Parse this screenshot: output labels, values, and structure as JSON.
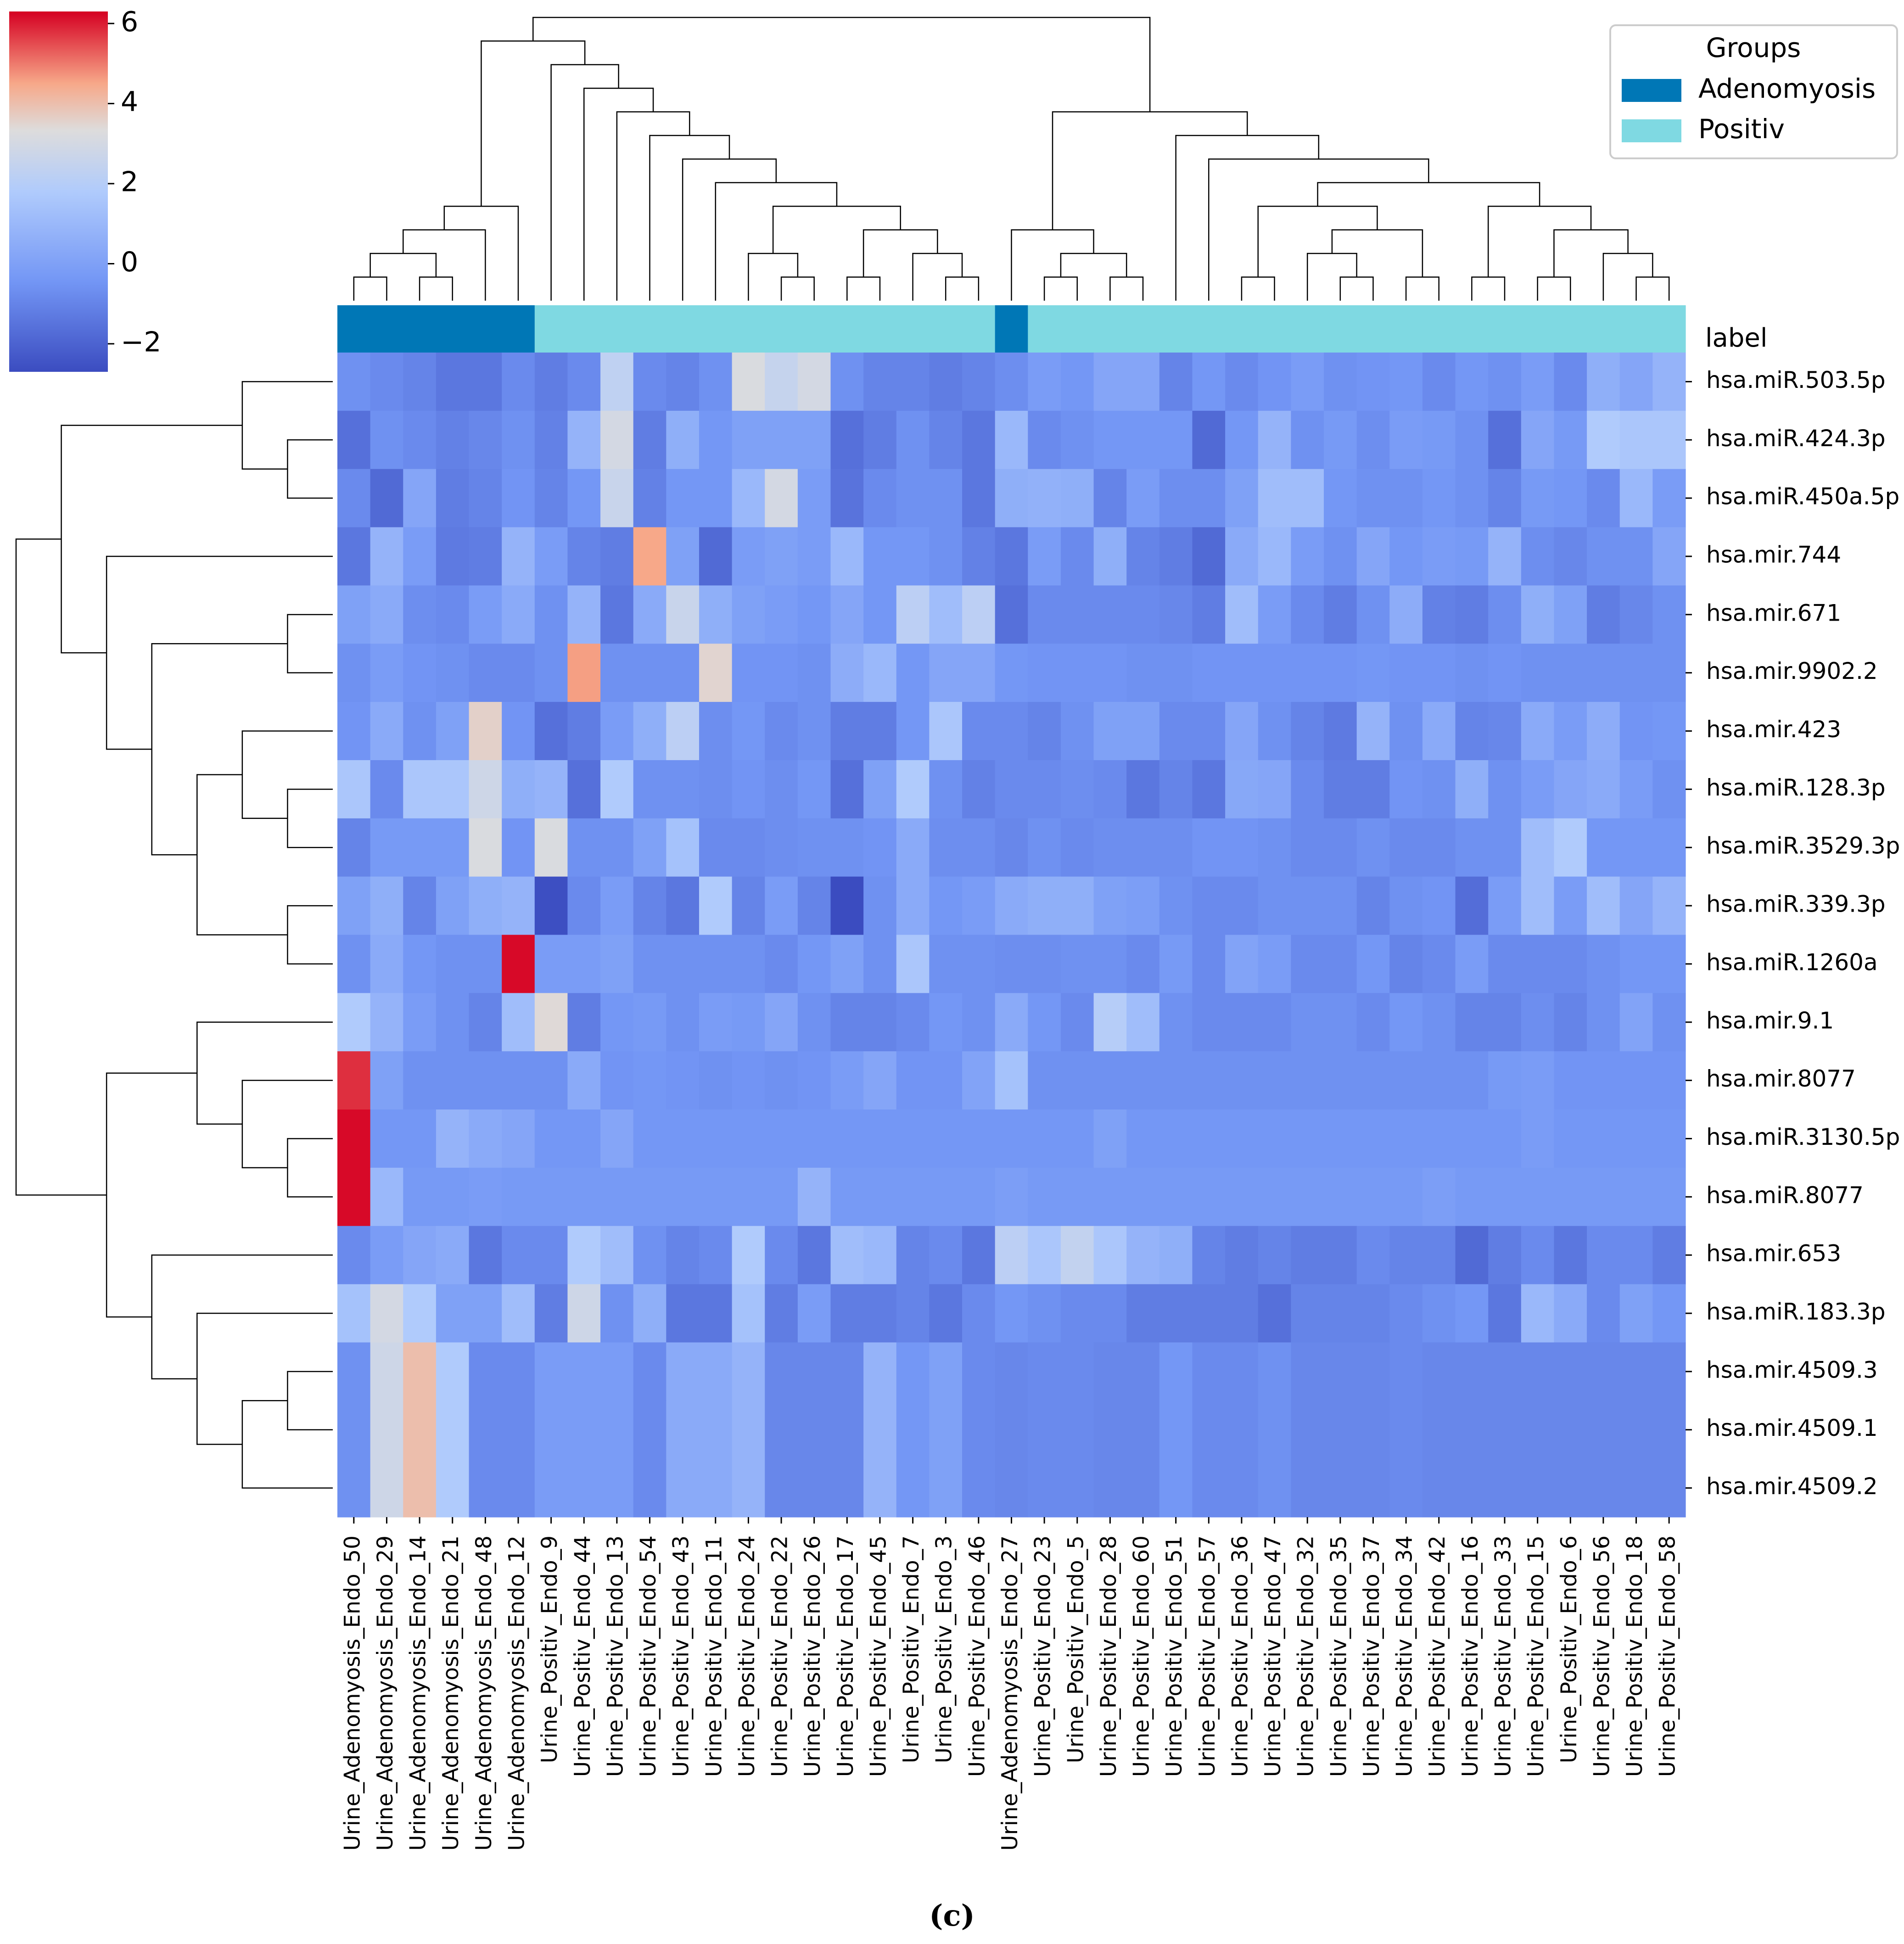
{
  "chart_data": {
    "type": "heatmap",
    "title": "",
    "caption": "(c)",
    "colormap": "coolwarm",
    "colorbar": {
      "vmin": -2.7,
      "vmax": 6.3,
      "ticks": [
        -2,
        0,
        2,
        4,
        6
      ],
      "tick_labels": [
        "−2",
        "0",
        "2",
        "4",
        "6"
      ]
    },
    "annotation_row_label": "label",
    "legend": {
      "title": "Groups",
      "placement": "top-right",
      "items": [
        {
          "label": "Adenomyosis",
          "color": "#0077b6"
        },
        {
          "label": "Positiv",
          "color": "#7fd9e2"
        }
      ]
    },
    "columns": [
      {
        "label": "Urine_Adenomyosis_Endo_50",
        "group": "Adenomyosis"
      },
      {
        "label": "Urine_Adenomyosis_Endo_29",
        "group": "Adenomyosis"
      },
      {
        "label": "Urine_Adenomyosis_Endo_14",
        "group": "Adenomyosis"
      },
      {
        "label": "Urine_Adenomyosis_Endo_21",
        "group": "Adenomyosis"
      },
      {
        "label": "Urine_Adenomyosis_Endo_48",
        "group": "Adenomyosis"
      },
      {
        "label": "Urine_Adenomyosis_Endo_12",
        "group": "Adenomyosis"
      },
      {
        "label": "Urine_Positiv_Endo_9",
        "group": "Positiv"
      },
      {
        "label": "Urine_Positiv_Endo_44",
        "group": "Positiv"
      },
      {
        "label": "Urine_Positiv_Endo_13",
        "group": "Positiv"
      },
      {
        "label": "Urine_Positiv_Endo_54",
        "group": "Positiv"
      },
      {
        "label": "Urine_Positiv_Endo_43",
        "group": "Positiv"
      },
      {
        "label": "Urine_Positiv_Endo_11",
        "group": "Positiv"
      },
      {
        "label": "Urine_Positiv_Endo_24",
        "group": "Positiv"
      },
      {
        "label": "Urine_Positiv_Endo_22",
        "group": "Positiv"
      },
      {
        "label": "Urine_Positiv_Endo_26",
        "group": "Positiv"
      },
      {
        "label": "Urine_Positiv_Endo_17",
        "group": "Positiv"
      },
      {
        "label": "Urine_Positiv_Endo_45",
        "group": "Positiv"
      },
      {
        "label": "Urine_Positiv_Endo_7",
        "group": "Positiv"
      },
      {
        "label": "Urine_Positiv_Endo_3",
        "group": "Positiv"
      },
      {
        "label": "Urine_Positiv_Endo_46",
        "group": "Positiv"
      },
      {
        "label": "Urine_Adenomyosis_Endo_27",
        "group": "Adenomyosis"
      },
      {
        "label": "Urine_Positiv_Endo_23",
        "group": "Positiv"
      },
      {
        "label": "Urine_Positiv_Endo_5",
        "group": "Positiv"
      },
      {
        "label": "Urine_Positiv_Endo_28",
        "group": "Positiv"
      },
      {
        "label": "Urine_Positiv_Endo_60",
        "group": "Positiv"
      },
      {
        "label": "Urine_Positiv_Endo_51",
        "group": "Positiv"
      },
      {
        "label": "Urine_Positiv_Endo_57",
        "group": "Positiv"
      },
      {
        "label": "Urine_Positiv_Endo_36",
        "group": "Positiv"
      },
      {
        "label": "Urine_Positiv_Endo_47",
        "group": "Positiv"
      },
      {
        "label": "Urine_Positiv_Endo_32",
        "group": "Positiv"
      },
      {
        "label": "Urine_Positiv_Endo_35",
        "group": "Positiv"
      },
      {
        "label": "Urine_Positiv_Endo_37",
        "group": "Positiv"
      },
      {
        "label": "Urine_Positiv_Endo_34",
        "group": "Positiv"
      },
      {
        "label": "Urine_Positiv_Endo_42",
        "group": "Positiv"
      },
      {
        "label": "Urine_Positiv_Endo_16",
        "group": "Positiv"
      },
      {
        "label": "Urine_Positiv_Endo_33",
        "group": "Positiv"
      },
      {
        "label": "Urine_Positiv_Endo_15",
        "group": "Positiv"
      },
      {
        "label": "Urine_Positiv_Endo_6",
        "group": "Positiv"
      },
      {
        "label": "Urine_Positiv_Endo_56",
        "group": "Positiv"
      },
      {
        "label": "Urine_Positiv_Endo_18",
        "group": "Positiv"
      },
      {
        "label": "Urine_Positiv_Endo_58",
        "group": "Positiv"
      }
    ],
    "rows": [
      "hsa.miR.503.5p",
      "hsa.miR.424.3p",
      "hsa.miR.450a.5p",
      "hsa.mir.744",
      "hsa.mir.671",
      "hsa.mir.9902.2",
      "hsa.mir.423",
      "hsa.miR.128.3p",
      "hsa.miR.3529.3p",
      "hsa.miR.339.3p",
      "hsa.miR.1260a",
      "hsa.mir.9.1",
      "hsa.mir.8077",
      "hsa.miR.3130.5p",
      "hsa.miR.8077",
      "hsa.mir.653",
      "hsa.miR.183.3p",
      "hsa.mir.4509.3",
      "hsa.mir.4509.1",
      "hsa.mir.4509.2"
    ],
    "values": [
      [
        -0.6,
        -0.8,
        -1.0,
        -1.4,
        -1.4,
        -0.8,
        -1.2,
        -0.8,
        2.3,
        -0.8,
        -1.0,
        -0.6,
        3.2,
        2.5,
        3.0,
        -0.6,
        -1.0,
        -1.0,
        -1.2,
        -1.0,
        -0.7,
        -0.2,
        -0.4,
        0.2,
        0.2,
        -1.0,
        -0.4,
        -0.8,
        -0.5,
        -0.2,
        -0.6,
        -0.5,
        -0.4,
        -0.8,
        -0.4,
        -0.6,
        -0.2,
        -0.8,
        0.6,
        0.2,
        0.8
      ],
      [
        -1.6,
        -0.6,
        -0.8,
        -1.1,
        -0.9,
        -0.6,
        -1.1,
        0.8,
        3.0,
        -1.2,
        0.6,
        -0.4,
        0.0,
        0.0,
        0.0,
        -1.6,
        -1.2,
        -0.6,
        -1.0,
        -1.4,
        1.0,
        -0.8,
        -0.6,
        -0.4,
        -0.4,
        -0.4,
        -1.8,
        -0.4,
        0.8,
        -0.6,
        -0.3,
        -0.7,
        -0.2,
        -0.3,
        -0.6,
        -1.6,
        0.2,
        -0.3,
        1.8,
        1.6,
        1.6
      ],
      [
        -0.8,
        -1.8,
        0.2,
        -1.2,
        -1.0,
        -0.5,
        -1.0,
        -0.4,
        2.6,
        -1.1,
        -0.4,
        -0.4,
        1.0,
        3.0,
        -0.2,
        -1.5,
        -0.8,
        -0.6,
        -0.6,
        -1.4,
        0.6,
        0.7,
        0.6,
        -1.0,
        -0.2,
        -0.7,
        -0.7,
        0.0,
        1.2,
        1.2,
        -0.4,
        -0.6,
        -0.6,
        -0.4,
        -0.6,
        -1.0,
        -0.3,
        -0.4,
        -0.8,
        1.0,
        -0.2
      ],
      [
        -1.4,
        0.8,
        -0.2,
        -1.3,
        -1.2,
        0.8,
        -0.2,
        -1.0,
        -1.2,
        4.5,
        0.0,
        -1.8,
        -0.2,
        0.0,
        -0.2,
        1.0,
        -0.4,
        -0.4,
        -0.6,
        -1.1,
        -1.4,
        -0.2,
        -0.8,
        0.6,
        -1.0,
        -1.2,
        -1.8,
        0.4,
        1.0,
        -0.2,
        -0.6,
        0.2,
        -0.4,
        -0.2,
        -0.3,
        0.8,
        -0.7,
        -0.9,
        -0.6,
        -0.6,
        0.2
      ],
      [
        0.0,
        0.4,
        -0.7,
        -0.8,
        -0.2,
        0.4,
        -0.6,
        0.8,
        -1.4,
        0.4,
        2.6,
        0.6,
        0.0,
        -0.2,
        -0.4,
        0.2,
        -0.4,
        2.2,
        1.2,
        2.2,
        -1.6,
        -0.8,
        -0.8,
        -0.8,
        -0.8,
        -0.9,
        -1.2,
        1.2,
        -0.2,
        -0.8,
        -1.2,
        -0.6,
        0.5,
        -1.1,
        -1.2,
        -0.7,
        0.6,
        0.0,
        -1.2,
        -0.9,
        -0.6
      ],
      [
        -0.6,
        -0.2,
        -0.5,
        -0.6,
        -0.8,
        -0.8,
        -0.6,
        4.6,
        -0.6,
        -0.6,
        -0.6,
        3.5,
        -0.5,
        -0.5,
        -0.6,
        0.5,
        1.0,
        -0.4,
        0.2,
        0.2,
        -0.4,
        -0.5,
        -0.5,
        -0.5,
        -0.6,
        -0.6,
        -0.5,
        -0.5,
        -0.5,
        -0.5,
        -0.5,
        -0.4,
        -0.5,
        -0.5,
        -0.6,
        -0.5,
        -0.6,
        -0.6,
        -0.6,
        -0.6,
        -0.6
      ],
      [
        -0.5,
        0.4,
        -0.6,
        0.0,
        3.6,
        -0.5,
        -1.6,
        -1.2,
        -0.2,
        0.6,
        2.2,
        -0.7,
        -0.4,
        -0.8,
        -0.6,
        -1.2,
        -1.2,
        -0.4,
        1.6,
        -0.8,
        -0.8,
        -1.0,
        -0.6,
        0.0,
        0.0,
        -0.8,
        -0.8,
        0.2,
        -0.6,
        -1.0,
        -1.3,
        0.8,
        -0.6,
        0.4,
        -1.0,
        -0.9,
        0.4,
        -0.2,
        0.5,
        -0.5,
        -0.4
      ],
      [
        1.6,
        -0.8,
        1.6,
        1.6,
        2.8,
        0.6,
        0.8,
        -1.6,
        1.8,
        -0.6,
        -0.6,
        -0.7,
        -0.5,
        -0.7,
        -0.4,
        -1.6,
        0.0,
        1.8,
        -0.6,
        -1.1,
        -0.8,
        -0.8,
        -0.7,
        -0.8,
        -1.4,
        -1.0,
        -1.4,
        0.3,
        0.2,
        -0.8,
        -1.2,
        -1.2,
        -0.5,
        -0.6,
        0.6,
        -0.6,
        -0.2,
        0.2,
        0.4,
        -0.2,
        -0.6
      ],
      [
        -1.0,
        -0.3,
        -0.3,
        -0.3,
        3.2,
        -0.5,
        3.2,
        -0.6,
        -0.6,
        0.0,
        1.4,
        -0.8,
        -0.8,
        -0.7,
        -0.6,
        -0.6,
        -0.5,
        0.4,
        -0.7,
        -0.7,
        -0.9,
        -0.6,
        -0.8,
        -0.7,
        -0.7,
        -0.7,
        -0.5,
        -0.5,
        -0.6,
        -0.8,
        -0.8,
        -0.6,
        -0.8,
        -0.8,
        -0.6,
        -0.6,
        1.2,
        1.8,
        -0.4,
        -0.4,
        -0.4
      ],
      [
        0.0,
        0.6,
        -1.0,
        0.0,
        0.6,
        0.8,
        -2.6,
        -0.8,
        -0.2,
        -1.0,
        -1.4,
        1.8,
        -1.0,
        -0.2,
        -1.0,
        -2.8,
        -0.6,
        0.4,
        -0.4,
        -0.2,
        0.4,
        0.6,
        0.6,
        0.0,
        -0.1,
        -0.6,
        -0.8,
        -0.8,
        -0.6,
        -0.6,
        -0.6,
        -1.0,
        -0.6,
        -0.5,
        -1.7,
        -0.2,
        1.2,
        -0.2,
        1.2,
        0.2,
        0.8
      ],
      [
        -0.6,
        0.4,
        -0.4,
        -0.6,
        -0.6,
        6.2,
        -0.2,
        -0.2,
        0.0,
        -0.6,
        -0.6,
        -0.6,
        -0.6,
        -0.8,
        -0.4,
        0.0,
        -0.6,
        1.6,
        -0.6,
        -0.6,
        -0.7,
        -0.7,
        -0.6,
        -0.6,
        -0.8,
        -0.3,
        -0.8,
        0.1,
        -0.2,
        -0.8,
        -0.8,
        -0.4,
        -1.0,
        -0.8,
        -0.2,
        -0.8,
        -0.8,
        -0.8,
        -0.6,
        -0.4,
        -0.4
      ],
      [
        1.8,
        0.8,
        -0.2,
        -0.6,
        -1.0,
        1.2,
        3.4,
        -1.2,
        -0.4,
        -0.3,
        -0.6,
        -0.2,
        -0.3,
        0.2,
        -0.6,
        -1.0,
        -1.0,
        -0.8,
        -0.4,
        -0.6,
        0.4,
        -0.4,
        -0.8,
        2.0,
        1.2,
        -0.6,
        -0.8,
        -0.8,
        -0.8,
        -0.6,
        -0.6,
        -0.8,
        -0.4,
        -0.6,
        -1.0,
        -1.0,
        -0.7,
        -1.0,
        -0.6,
        0.1,
        -0.6
      ],
      [
        5.8,
        0.0,
        -0.6,
        -0.6,
        -0.6,
        -0.6,
        -0.6,
        0.4,
        -0.5,
        -0.4,
        -0.5,
        -0.6,
        -0.5,
        -0.6,
        -0.5,
        -0.2,
        0.2,
        -0.5,
        -0.5,
        0.1,
        1.4,
        -0.6,
        -0.6,
        -0.6,
        -0.6,
        -0.6,
        -0.6,
        -0.6,
        -0.6,
        -0.6,
        -0.6,
        -0.6,
        -0.6,
        -0.6,
        -0.6,
        -0.3,
        -0.2,
        -0.5,
        -0.5,
        -0.5,
        -0.5
      ],
      [
        6.2,
        -0.4,
        -0.4,
        0.8,
        0.4,
        0.2,
        -0.4,
        -0.4,
        0.2,
        -0.4,
        -0.4,
        -0.4,
        -0.4,
        -0.4,
        -0.4,
        -0.4,
        -0.4,
        -0.4,
        -0.4,
        -0.4,
        -0.4,
        -0.4,
        -0.4,
        0.0,
        -0.4,
        -0.4,
        -0.4,
        -0.4,
        -0.4,
        -0.4,
        -0.4,
        -0.4,
        -0.4,
        -0.4,
        -0.4,
        -0.4,
        -0.2,
        -0.4,
        -0.4,
        -0.4,
        -0.4
      ],
      [
        6.2,
        1.0,
        -0.3,
        -0.3,
        -0.2,
        -0.3,
        -0.3,
        -0.3,
        -0.3,
        -0.3,
        -0.3,
        -0.3,
        -0.3,
        -0.3,
        0.8,
        -0.3,
        -0.3,
        -0.3,
        -0.3,
        -0.3,
        -0.1,
        -0.3,
        -0.3,
        -0.3,
        -0.3,
        -0.3,
        -0.3,
        -0.3,
        -0.3,
        -0.3,
        -0.3,
        -0.3,
        -0.3,
        -0.1,
        -0.3,
        -0.3,
        -0.3,
        -0.3,
        -0.3,
        -0.3,
        -0.3
      ],
      [
        -0.8,
        -0.2,
        0.2,
        0.4,
        -1.4,
        -0.8,
        -0.8,
        1.8,
        1.2,
        -0.6,
        -1.0,
        -0.8,
        1.8,
        -0.8,
        -1.4,
        1.2,
        1.0,
        -1.0,
        -0.8,
        -1.4,
        2.2,
        1.6,
        2.4,
        1.6,
        0.8,
        0.6,
        -1.0,
        -1.2,
        -1.0,
        -1.2,
        -1.2,
        -0.8,
        -1.0,
        -1.0,
        -1.8,
        -1.2,
        -0.8,
        -1.4,
        -0.8,
        -0.8,
        -1.2
      ],
      [
        1.4,
        3.0,
        1.8,
        0.0,
        0.0,
        1.2,
        -1.2,
        2.8,
        -0.6,
        0.6,
        -1.4,
        -1.4,
        1.4,
        -1.2,
        -0.2,
        -1.2,
        -1.2,
        -1.0,
        -1.4,
        -0.8,
        -0.4,
        -0.6,
        -0.8,
        -0.8,
        -1.2,
        -1.2,
        -1.2,
        -1.2,
        -1.6,
        -1.0,
        -1.0,
        -1.0,
        -0.8,
        -0.6,
        -0.4,
        -1.4,
        1.0,
        0.4,
        -0.8,
        0.0,
        -0.4
      ],
      [
        -0.6,
        2.8,
        4.0,
        1.8,
        -0.8,
        -0.8,
        -0.2,
        -0.2,
        -0.2,
        -0.8,
        0.4,
        0.4,
        0.8,
        -0.9,
        -0.9,
        -0.9,
        0.8,
        -0.4,
        0.0,
        -0.8,
        -0.9,
        -0.8,
        -0.8,
        -0.9,
        -0.9,
        -0.4,
        -0.8,
        -0.8,
        -0.6,
        -0.9,
        -0.9,
        -0.9,
        -0.8,
        -0.9,
        -0.9,
        -0.9,
        -0.9,
        -0.9,
        -0.9,
        -0.9,
        -0.9
      ],
      [
        -0.6,
        2.8,
        4.0,
        1.8,
        -0.8,
        -0.8,
        -0.2,
        -0.2,
        -0.2,
        -0.8,
        0.4,
        0.4,
        0.8,
        -0.9,
        -0.9,
        -0.9,
        0.8,
        -0.4,
        0.0,
        -0.8,
        -0.9,
        -0.8,
        -0.8,
        -0.9,
        -0.9,
        -0.4,
        -0.8,
        -0.8,
        -0.6,
        -0.9,
        -0.9,
        -0.9,
        -0.8,
        -0.9,
        -0.9,
        -0.9,
        -0.9,
        -0.9,
        -0.9,
        -0.9,
        -0.9
      ],
      [
        -0.6,
        2.8,
        4.0,
        1.8,
        -0.8,
        -0.8,
        -0.2,
        -0.2,
        -0.2,
        -0.8,
        0.4,
        0.4,
        0.8,
        -0.9,
        -0.9,
        -0.9,
        0.8,
        -0.4,
        0.0,
        -0.8,
        -0.9,
        -0.8,
        -0.8,
        -0.9,
        -0.9,
        -0.4,
        -0.8,
        -0.8,
        -0.6,
        -0.9,
        -0.9,
        -0.9,
        -0.8,
        -0.9,
        -0.9,
        -0.9,
        -0.9,
        -0.9,
        -0.9,
        -0.9,
        -0.9
      ]
    ],
    "col_dendrogram": [
      [
        0,
        1,
        "A"
      ],
      [
        2,
        3,
        "B"
      ],
      [
        "A",
        "B",
        "C"
      ],
      [
        "C",
        4,
        "D"
      ],
      [
        "D",
        5,
        "E"
      ],
      [
        13,
        14,
        "F"
      ],
      [
        12,
        "F",
        "G"
      ],
      [
        15,
        16,
        "H"
      ],
      [
        18,
        19,
        "I"
      ],
      [
        17,
        "I",
        "J"
      ],
      [
        "H",
        "J",
        "K"
      ],
      [
        "G",
        "K",
        "L"
      ],
      [
        11,
        "L",
        "M"
      ],
      [
        10,
        "M",
        "N"
      ],
      [
        9,
        "N",
        "O"
      ],
      [
        8,
        "O",
        "P"
      ],
      [
        7,
        "P",
        "Q"
      ],
      [
        6,
        "Q",
        "R"
      ],
      [
        "E",
        "R",
        "S"
      ],
      [
        21,
        22,
        "T"
      ],
      [
        23,
        24,
        "U"
      ],
      [
        "T",
        "U",
        "V"
      ],
      [
        20,
        "V",
        "W"
      ],
      [
        27,
        28,
        "X"
      ],
      [
        30,
        31,
        "Y"
      ],
      [
        29,
        "Y",
        "Z"
      ],
      [
        32,
        33,
        "AA"
      ],
      [
        "Z",
        "AA",
        "AB"
      ],
      [
        "X",
        "AB",
        "AC"
      ],
      [
        34,
        35,
        "AD"
      ],
      [
        36,
        37,
        "AE"
      ],
      [
        39,
        40,
        "AF"
      ],
      [
        38,
        "AF",
        "AG"
      ],
      [
        "AE",
        "AG",
        "AH"
      ],
      [
        "AD",
        "AH",
        "AI"
      ],
      [
        "AC",
        "AI",
        "AJ"
      ],
      [
        26,
        "AJ",
        "AK"
      ],
      [
        25,
        "AK",
        "AL"
      ],
      [
        "W",
        "AL",
        "AM"
      ],
      [
        "S",
        "AM",
        "AN"
      ]
    ],
    "row_dendrogram": [
      [
        1,
        2,
        "r1"
      ],
      [
        0,
        "r1",
        "r2"
      ],
      [
        8,
        7,
        "r3"
      ],
      [
        6,
        "r3",
        "r4"
      ],
      [
        9,
        10,
        "r5"
      ],
      [
        "r4",
        "r5",
        "r6"
      ],
      [
        4,
        5,
        "r7"
      ],
      [
        "r7",
        "r6",
        "r8"
      ],
      [
        3,
        "r8",
        "r9"
      ],
      [
        "r2",
        "r9",
        "r10"
      ],
      [
        13,
        14,
        "r11"
      ],
      [
        12,
        "r11",
        "r12"
      ],
      [
        11,
        "r12",
        "r13"
      ],
      [
        17,
        18,
        "r14"
      ],
      [
        "r14",
        19,
        "r15"
      ],
      [
        16,
        "r15",
        "r16"
      ],
      [
        15,
        "r16",
        "r17"
      ],
      [
        "r13",
        "r17",
        "r18"
      ],
      [
        "r10",
        "r18",
        "r19"
      ]
    ]
  }
}
